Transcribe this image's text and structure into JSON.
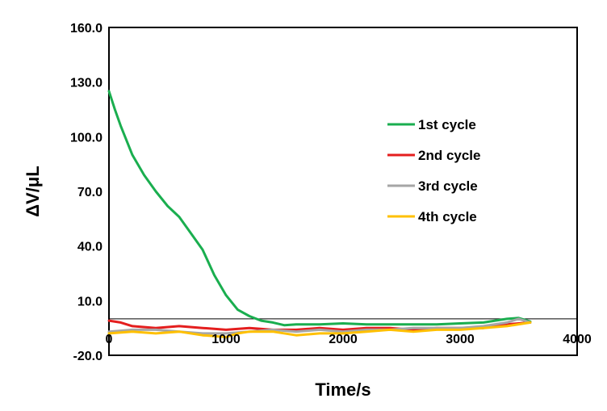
{
  "chart_data": {
    "type": "line",
    "xlabel": "Time/s",
    "ylabel": "ΔV/μL",
    "xlim": [
      0,
      4000
    ],
    "ylim": [
      -20,
      160
    ],
    "x_ticks": [
      0,
      1000,
      2000,
      3000,
      4000
    ],
    "x_tick_labels": [
      "0",
      "1000",
      "2000",
      "3000",
      "4000"
    ],
    "y_ticks": [
      -20,
      10,
      40,
      70,
      100,
      130,
      160
    ],
    "y_tick_labels": [
      "-20.0",
      "10.0",
      "40.0",
      "70.0",
      "100.0",
      "130.0",
      "160.0"
    ],
    "grid": false,
    "legend_position": "right",
    "series": [
      {
        "name": "1st cycle",
        "color": "#1AAE4F",
        "x": [
          0,
          50,
          100,
          200,
          300,
          400,
          500,
          600,
          700,
          800,
          900,
          1000,
          1100,
          1200,
          1300,
          1400,
          1500,
          1600,
          1800,
          2000,
          2200,
          2400,
          2600,
          2800,
          3000,
          3200,
          3400,
          3500,
          3600
        ],
        "y": [
          125,
          115,
          106,
          90,
          79,
          70,
          62,
          56,
          47,
          38,
          24,
          13,
          5,
          1.5,
          -1,
          -2,
          -3.5,
          -3,
          -3,
          -2.5,
          -3,
          -3,
          -3,
          -3,
          -2.5,
          -2,
          0,
          0.5,
          -1.5
        ]
      },
      {
        "name": "2nd cycle",
        "color": "#E41E1E",
        "x": [
          0,
          100,
          200,
          400,
          600,
          800,
          1000,
          1200,
          1400,
          1600,
          1800,
          2000,
          2200,
          2400,
          2600,
          2800,
          3000,
          3200,
          3400,
          3600
        ],
        "y": [
          -1,
          -2,
          -4,
          -5,
          -4,
          -5,
          -6,
          -5,
          -6,
          -6,
          -5,
          -6,
          -5,
          -5,
          -6,
          -5,
          -5,
          -5,
          -3,
          -2
        ]
      },
      {
        "name": "3rd cycle",
        "color": "#A6A6A6",
        "x": [
          0,
          200,
          400,
          600,
          800,
          1000,
          1200,
          1400,
          1600,
          1800,
          2000,
          2200,
          2400,
          2600,
          2800,
          3000,
          3200,
          3400,
          3500,
          3600
        ],
        "y": [
          -7,
          -6,
          -6,
          -7,
          -8,
          -8,
          -7,
          -6,
          -7,
          -6,
          -7,
          -6,
          -6,
          -5,
          -5,
          -5,
          -4,
          -2,
          0,
          -2
        ]
      },
      {
        "name": "4th cycle",
        "color": "#FFC000",
        "x": [
          0,
          200,
          400,
          600,
          800,
          1000,
          1100,
          1200,
          1400,
          1600,
          1800,
          2000,
          2200,
          2400,
          2600,
          2800,
          3000,
          3200,
          3400,
          3600
        ],
        "y": [
          -8,
          -7,
          -8,
          -7,
          -9,
          -10,
          -8,
          -7,
          -7,
          -9,
          -8,
          -8,
          -7,
          -6,
          -7,
          -6,
          -6,
          -5,
          -4,
          -2
        ]
      }
    ]
  }
}
